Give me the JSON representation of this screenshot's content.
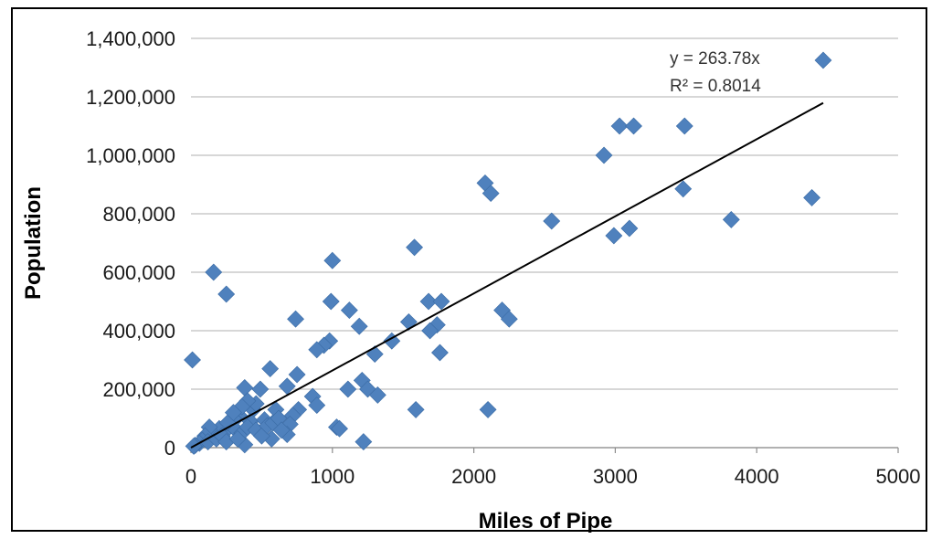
{
  "chart_data": {
    "type": "scatter",
    "title": "",
    "xlabel": "Miles of Pipe",
    "ylabel": "Population",
    "xlim": [
      0,
      5000
    ],
    "ylim": [
      0,
      1400000
    ],
    "x_ticks": [
      0,
      1000,
      2000,
      3000,
      4000,
      5000
    ],
    "x_tick_labels": [
      "0",
      "1000",
      "2000",
      "3000",
      "4000",
      "5000"
    ],
    "y_ticks": [
      0,
      200000,
      400000,
      600000,
      800000,
      1000000,
      1200000,
      1400000
    ],
    "y_tick_labels": [
      "0",
      "200,000",
      "400,000",
      "600,000",
      "800,000",
      "1,000,000",
      "1,200,000",
      "1,400,000"
    ],
    "grid": "horizontal",
    "marker_color": "#4f81bd",
    "trendline_color": "#000000",
    "trendline": {
      "slope": 263.78,
      "x_range": [
        0,
        4470
      ]
    },
    "annotations": [
      "y = 263.78x",
      "R² = 0.8014"
    ],
    "series": [
      {
        "points": [
          [
            4470,
            1325000
          ],
          [
            3030,
            1100000
          ],
          [
            3130,
            1100000
          ],
          [
            3490,
            1100000
          ],
          [
            2920,
            1000000
          ],
          [
            2080,
            905000
          ],
          [
            2120,
            870000
          ],
          [
            3480,
            885000
          ],
          [
            4390,
            855000
          ],
          [
            2550,
            775000
          ],
          [
            3820,
            780000
          ],
          [
            3100,
            750000
          ],
          [
            2990,
            725000
          ],
          [
            1580,
            685000
          ],
          [
            1000,
            640000
          ],
          [
            160,
            600000
          ],
          [
            250,
            525000
          ],
          [
            990,
            500000
          ],
          [
            1680,
            500000
          ],
          [
            1770,
            500000
          ],
          [
            1120,
            470000
          ],
          [
            2200,
            470000
          ],
          [
            2250,
            440000
          ],
          [
            740,
            440000
          ],
          [
            1540,
            430000
          ],
          [
            1740,
            420000
          ],
          [
            1190,
            415000
          ],
          [
            1690,
            400000
          ],
          [
            1420,
            365000
          ],
          [
            980,
            365000
          ],
          [
            940,
            350000
          ],
          [
            890,
            335000
          ],
          [
            1300,
            320000
          ],
          [
            1760,
            325000
          ],
          [
            10,
            300000
          ],
          [
            560,
            270000
          ],
          [
            750,
            250000
          ],
          [
            380,
            205000
          ],
          [
            490,
            200000
          ],
          [
            680,
            210000
          ],
          [
            1210,
            230000
          ],
          [
            1110,
            200000
          ],
          [
            1250,
            200000
          ],
          [
            1320,
            180000
          ],
          [
            860,
            175000
          ],
          [
            890,
            145000
          ],
          [
            1590,
            130000
          ],
          [
            2100,
            130000
          ],
          [
            600,
            130000
          ],
          [
            760,
            130000
          ],
          [
            720,
            110000
          ],
          [
            700,
            80000
          ],
          [
            1030,
            70000
          ],
          [
            1050,
            65000
          ],
          [
            680,
            45000
          ],
          [
            570,
            30000
          ],
          [
            1220,
            20000
          ],
          [
            380,
            10000
          ],
          [
            440,
            130000
          ],
          [
            340,
            110000
          ],
          [
            300,
            100000
          ],
          [
            420,
            90000
          ],
          [
            520,
            95000
          ],
          [
            280,
            75000
          ],
          [
            240,
            55000
          ],
          [
            200,
            65000
          ],
          [
            160,
            45000
          ],
          [
            130,
            70000
          ],
          [
            100,
            40000
          ],
          [
            80,
            25000
          ],
          [
            60,
            15000
          ],
          [
            30,
            8000
          ],
          [
            20,
            5000
          ],
          [
            120,
            20000
          ],
          [
            180,
            30000
          ],
          [
            220,
            40000
          ],
          [
            260,
            85000
          ],
          [
            320,
            60000
          ],
          [
            360,
            50000
          ],
          [
            400,
            70000
          ],
          [
            460,
            60000
          ],
          [
            500,
            40000
          ],
          [
            540,
            75000
          ],
          [
            580,
            85000
          ],
          [
            620,
            100000
          ],
          [
            640,
            60000
          ],
          [
            460,
            150000
          ],
          [
            400,
            160000
          ],
          [
            360,
            140000
          ],
          [
            300,
            120000
          ],
          [
            250,
            20000
          ],
          [
            330,
            30000
          ]
        ]
      }
    ]
  }
}
